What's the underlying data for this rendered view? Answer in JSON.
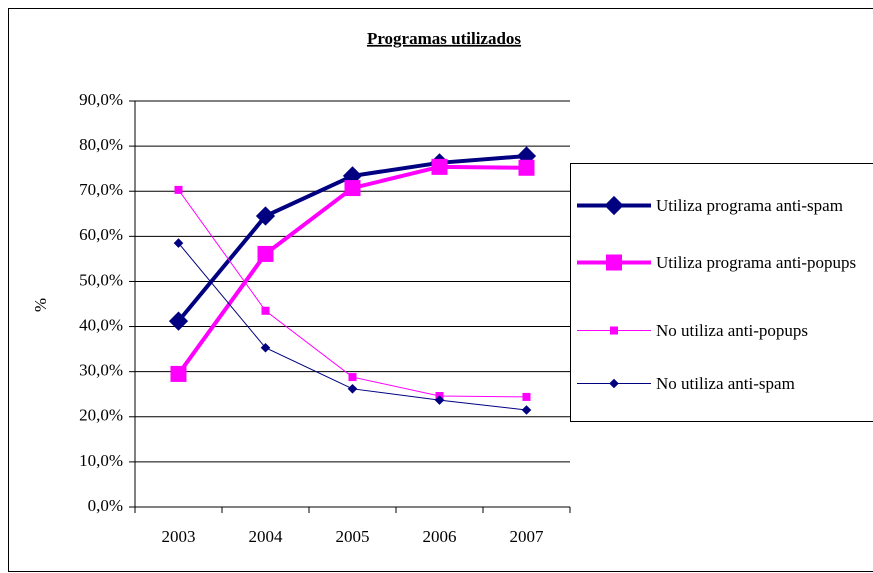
{
  "chart_data": {
    "type": "line",
    "title": "Programas utilizados",
    "ylabel": "%",
    "categories": [
      "2003",
      "2004",
      "2005",
      "2006",
      "2007"
    ],
    "ylim": [
      0,
      90
    ],
    "yticks": [
      {
        "value": 0,
        "label": "0,0%"
      },
      {
        "value": 10,
        "label": "10,0%"
      },
      {
        "value": 20,
        "label": "20,0%"
      },
      {
        "value": 30,
        "label": "30,0%"
      },
      {
        "value": 40,
        "label": "40,0%"
      },
      {
        "value": 50,
        "label": "50,0%"
      },
      {
        "value": 60,
        "label": "60,0%"
      },
      {
        "value": 70,
        "label": "70,0%"
      },
      {
        "value": 80,
        "label": "80,0%"
      },
      {
        "value": 90,
        "label": "90,0%"
      }
    ],
    "grid": true,
    "legend": "right",
    "series": [
      {
        "name": "Utiliza programa anti-spam",
        "color": "#000080",
        "line_width": 4,
        "marker": "diamond",
        "values": [
          41.2,
          64.5,
          73.4,
          76.3,
          77.8
        ]
      },
      {
        "name": "Utiliza programa anti-popups",
        "color": "#ff00ff",
        "line_width": 4,
        "marker": "square",
        "values": [
          29.5,
          56.1,
          70.7,
          75.4,
          75.2
        ]
      },
      {
        "name": "No utiliza anti-popups",
        "color": "#ff00ff",
        "line_width": 1,
        "marker": "square",
        "values": [
          70.3,
          43.5,
          28.8,
          24.6,
          24.4
        ]
      },
      {
        "name": "No utiliza anti-spam",
        "color": "#000080",
        "line_width": 1,
        "marker": "diamond",
        "values": [
          58.5,
          35.3,
          26.2,
          23.7,
          21.5
        ]
      }
    ]
  }
}
